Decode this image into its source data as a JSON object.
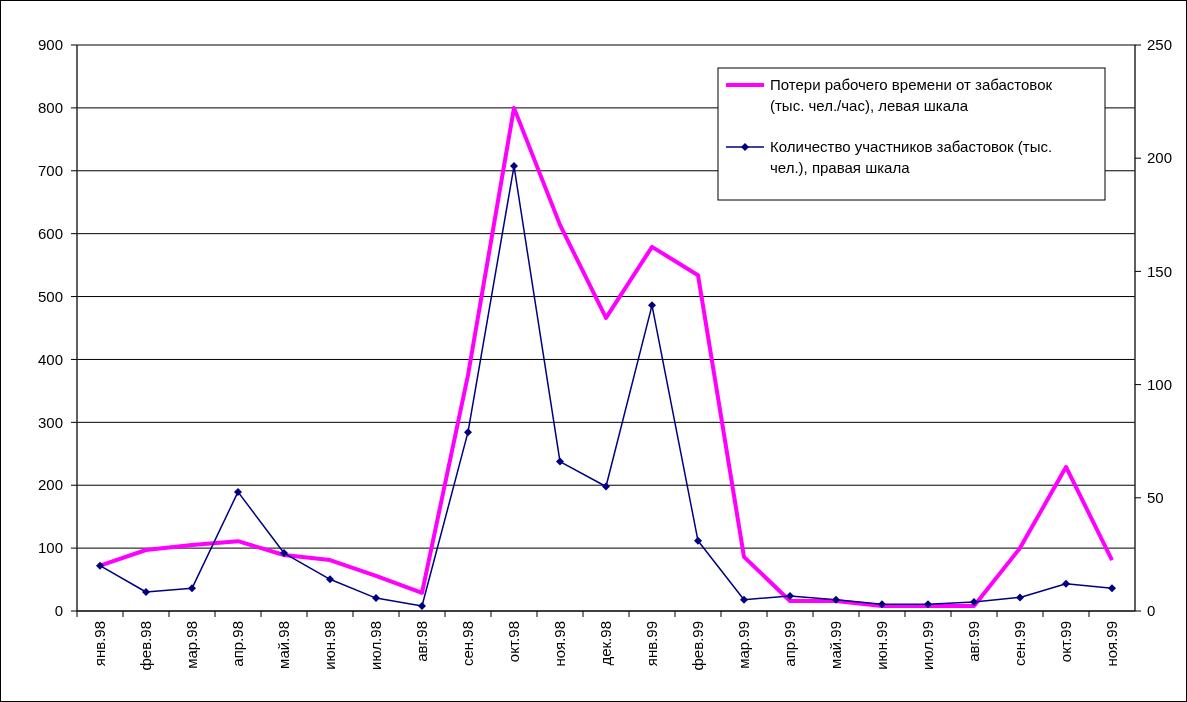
{
  "chart_data": {
    "type": "line",
    "categories": [
      "янв.98",
      "фев.98",
      "мар.98",
      "апр.98",
      "май.98",
      "июн.98",
      "июл.98",
      "авг.98",
      "сен.98",
      "окт.98",
      "ноя.98",
      "дек.98",
      "янв.99",
      "фев.99",
      "мар.99",
      "апр.99",
      "май.99",
      "июн.99",
      "июл.99",
      "авг.99",
      "сен.99",
      "окт.99",
      "ноя.99"
    ],
    "series": [
      {
        "name": "Потери рабочего времени от забастовок (тыс. чел./час), левая шкала",
        "color": "#ff00ff",
        "marker": "none",
        "values": [
          72,
          97,
          105,
          111,
          89,
          81,
          56,
          29,
          375,
          800,
          614,
          466,
          579,
          534,
          86,
          16,
          16,
          8,
          8,
          8,
          100,
          229,
          81
        ]
      },
      {
        "name": "Количество участников забастовок (тыс. чел.), правая шкала",
        "color": "#000080",
        "axis": "y2",
        "marker": "diamond",
        "values": [
          20,
          8.4,
          10,
          52.6,
          25.6,
          14,
          5.7,
          2.2,
          79,
          196.5,
          66,
          55,
          135,
          31,
          5,
          6.6,
          5,
          3,
          3,
          4,
          6,
          12,
          10
        ]
      }
    ],
    "ylim": [
      0,
      900
    ],
    "yticks": [
      0,
      100,
      200,
      300,
      400,
      500,
      600,
      700,
      800,
      900
    ],
    "y2lim": [
      0,
      250
    ],
    "y2ticks": [
      0,
      50,
      100,
      150,
      200,
      250
    ],
    "grid": "y",
    "legend": "top right"
  }
}
